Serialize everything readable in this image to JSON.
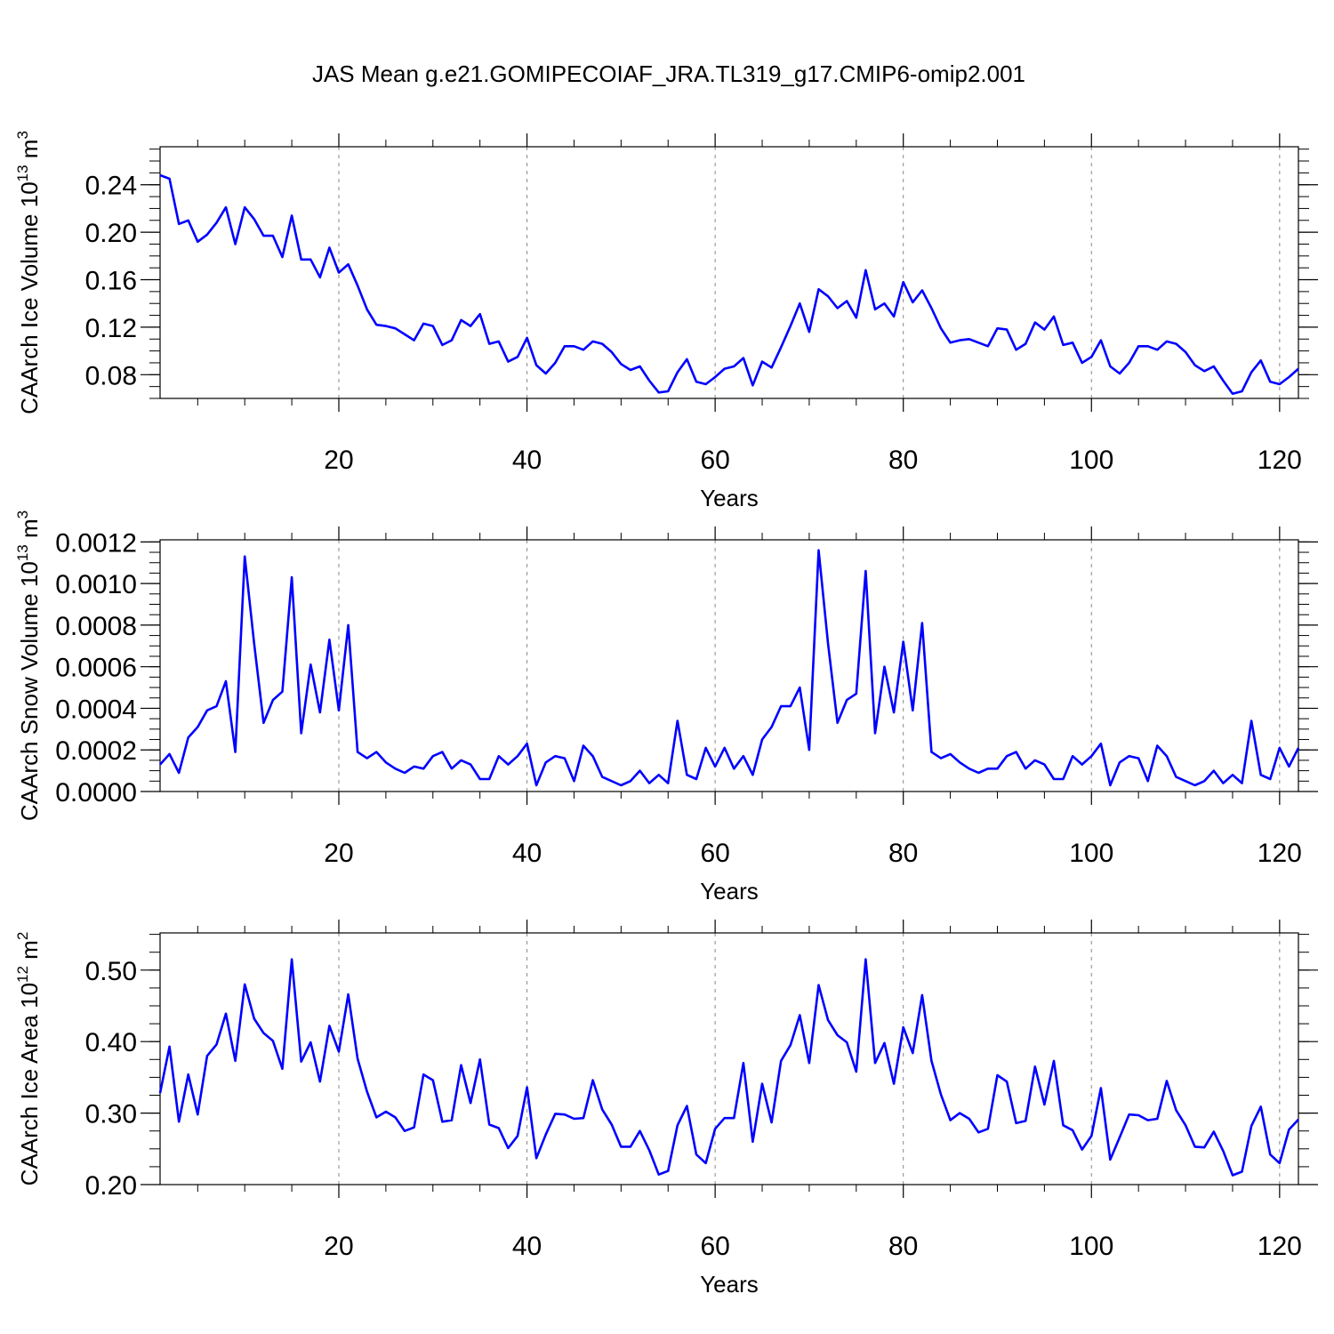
{
  "title": "JAS Mean g.e21.GOMIPECOIAF_JRA.TL319_g17.CMIP6-omip2.001",
  "chart_data": [
    {
      "type": "line",
      "xlabel": "Years",
      "ylabel": "CAArch Ice Volume 10",
      "ylabel_exp1": "13",
      "ylabel_mid": " m",
      "ylabel_exp2": "3",
      "xlim": [
        1,
        122
      ],
      "ylim": [
        0.06,
        0.272
      ],
      "xticks": [
        20,
        40,
        60,
        80,
        100,
        120
      ],
      "xtick_labels": [
        "20",
        "40",
        "60",
        "80",
        "100",
        "120"
      ],
      "yticks": [
        0.08,
        0.12,
        0.16,
        0.2,
        0.24
      ],
      "ytick_labels": [
        "0.08",
        "0.12",
        "0.16",
        "0.20",
        "0.24"
      ],
      "grid_x": true,
      "color": "#0000ff",
      "x_start": 1,
      "values": [
        0.248,
        0.245,
        0.207,
        0.21,
        0.192,
        0.198,
        0.208,
        0.221,
        0.19,
        0.221,
        0.211,
        0.197,
        0.197,
        0.179,
        0.214,
        0.177,
        0.177,
        0.162,
        0.187,
        0.166,
        0.173,
        0.155,
        0.135,
        0.122,
        0.121,
        0.119,
        0.114,
        0.109,
        0.123,
        0.121,
        0.105,
        0.109,
        0.126,
        0.121,
        0.131,
        0.106,
        0.108,
        0.091,
        0.095,
        0.111,
        0.088,
        0.081,
        0.09,
        0.104,
        0.104,
        0.101,
        0.108,
        0.106,
        0.099,
        0.089,
        0.084,
        0.087,
        0.075,
        0.065,
        0.066,
        0.082,
        0.093,
        0.074,
        0.072,
        0.078,
        0.085,
        0.087,
        0.094,
        0.071,
        0.091,
        0.086,
        0.103,
        0.121,
        0.14,
        0.116,
        0.152,
        0.146,
        0.136,
        0.142,
        0.128,
        0.168,
        0.135,
        0.14,
        0.129,
        0.158,
        0.141,
        0.151,
        0.136,
        0.119,
        0.107,
        0.109,
        0.11,
        0.107,
        0.104,
        0.119,
        0.118,
        0.101,
        0.106,
        0.124,
        0.118,
        0.129,
        0.105,
        0.107,
        0.09,
        0.095,
        0.109,
        0.087,
        0.081,
        0.09,
        0.104,
        0.104,
        0.101,
        0.108,
        0.106,
        0.099,
        0.088,
        0.083,
        0.087,
        0.075,
        0.064,
        0.066,
        0.082,
        0.092,
        0.074,
        0.072,
        0.078,
        0.085
      ]
    },
    {
      "type": "line",
      "xlabel": "Years",
      "ylabel": "CAArch Snow Volume 10",
      "ylabel_exp1": "13",
      "ylabel_mid": " m",
      "ylabel_exp2": "3",
      "xlim": [
        1,
        122
      ],
      "ylim": [
        0.0,
        0.00121
      ],
      "xticks": [
        20,
        40,
        60,
        80,
        100,
        120
      ],
      "xtick_labels": [
        "20",
        "40",
        "60",
        "80",
        "100",
        "120"
      ],
      "yticks": [
        0.0,
        0.0002,
        0.0004,
        0.0006,
        0.0008,
        0.001,
        0.0012
      ],
      "ytick_labels": [
        "0.0000",
        "0.0002",
        "0.0004",
        "0.0006",
        "0.0008",
        "0.0010",
        "0.0012"
      ],
      "grid_x": true,
      "color": "#0000ff",
      "x_start": 1,
      "values": [
        0.00013,
        0.00018,
        9e-05,
        0.00026,
        0.00031,
        0.00039,
        0.00041,
        0.00053,
        0.00019,
        0.00113,
        0.00071,
        0.00033,
        0.00044,
        0.00048,
        0.00103,
        0.00028,
        0.00061,
        0.00038,
        0.00073,
        0.00039,
        0.0008,
        0.00019,
        0.00016,
        0.00019,
        0.00014,
        0.00011,
        9e-05,
        0.00012,
        0.00011,
        0.00017,
        0.00019,
        0.00011,
        0.00015,
        0.00013,
        6e-05,
        6e-05,
        0.00017,
        0.00013,
        0.00017,
        0.00023,
        3e-05,
        0.00014,
        0.00017,
        0.00016,
        5e-05,
        0.00022,
        0.00017,
        7e-05,
        5e-05,
        3e-05,
        5e-05,
        0.0001,
        4e-05,
        8e-05,
        4e-05,
        0.00034,
        8e-05,
        6e-05,
        0.00021,
        0.00012,
        0.00021,
        0.00011,
        0.00017,
        8e-05,
        0.00025,
        0.00031,
        0.00041,
        0.00041,
        0.0005,
        0.0002,
        0.00116,
        0.00071,
        0.00033,
        0.00044,
        0.00047,
        0.00106,
        0.00028,
        0.0006,
        0.00038,
        0.00072,
        0.00039,
        0.00081,
        0.00019,
        0.00016,
        0.00018,
        0.00014,
        0.00011,
        9e-05,
        0.00011,
        0.00011,
        0.00017,
        0.00019,
        0.00011,
        0.00015,
        0.00013,
        6e-05,
        6e-05,
        0.00017,
        0.00013,
        0.00017,
        0.00023,
        3e-05,
        0.00014,
        0.00017,
        0.00016,
        5e-05,
        0.00022,
        0.00017,
        7e-05,
        5e-05,
        3e-05,
        5e-05,
        0.0001,
        4e-05,
        8e-05,
        4e-05,
        0.00034,
        8e-05,
        6e-05,
        0.00021,
        0.00012,
        0.00021
      ]
    },
    {
      "type": "line",
      "xlabel": "Years",
      "ylabel": "CAArch Ice Area 10",
      "ylabel_exp1": "12",
      "ylabel_mid": " m",
      "ylabel_exp2": "2",
      "xlim": [
        1,
        122
      ],
      "ylim": [
        0.2,
        0.552
      ],
      "xticks": [
        20,
        40,
        60,
        80,
        100,
        120
      ],
      "xtick_labels": [
        "20",
        "40",
        "60",
        "80",
        "100",
        "120"
      ],
      "yticks": [
        0.2,
        0.3,
        0.4,
        0.5
      ],
      "ytick_labels": [
        "0.20",
        "0.30",
        "0.40",
        "0.50"
      ],
      "grid_x": true,
      "color": "#0000ff",
      "x_start": 1,
      "values": [
        0.328,
        0.393,
        0.288,
        0.354,
        0.298,
        0.38,
        0.396,
        0.439,
        0.373,
        0.48,
        0.432,
        0.412,
        0.401,
        0.362,
        0.515,
        0.372,
        0.399,
        0.344,
        0.422,
        0.386,
        0.466,
        0.376,
        0.33,
        0.294,
        0.302,
        0.294,
        0.275,
        0.28,
        0.354,
        0.346,
        0.288,
        0.29,
        0.367,
        0.314,
        0.375,
        0.284,
        0.279,
        0.251,
        0.268,
        0.336,
        0.237,
        0.27,
        0.299,
        0.298,
        0.292,
        0.293,
        0.346,
        0.305,
        0.284,
        0.253,
        0.253,
        0.275,
        0.248,
        0.214,
        0.219,
        0.283,
        0.31,
        0.242,
        0.23,
        0.278,
        0.293,
        0.293,
        0.37,
        0.26,
        0.341,
        0.287,
        0.373,
        0.395,
        0.437,
        0.37,
        0.479,
        0.43,
        0.409,
        0.399,
        0.358,
        0.515,
        0.37,
        0.398,
        0.341,
        0.42,
        0.384,
        0.465,
        0.373,
        0.326,
        0.29,
        0.3,
        0.292,
        0.273,
        0.278,
        0.353,
        0.344,
        0.286,
        0.289,
        0.365,
        0.312,
        0.373,
        0.283,
        0.276,
        0.249,
        0.268,
        0.335,
        0.235,
        0.266,
        0.298,
        0.297,
        0.29,
        0.292,
        0.345,
        0.304,
        0.283,
        0.253,
        0.252,
        0.274,
        0.247,
        0.213,
        0.218,
        0.282,
        0.309,
        0.242,
        0.23,
        0.277,
        0.291
      ]
    }
  ]
}
